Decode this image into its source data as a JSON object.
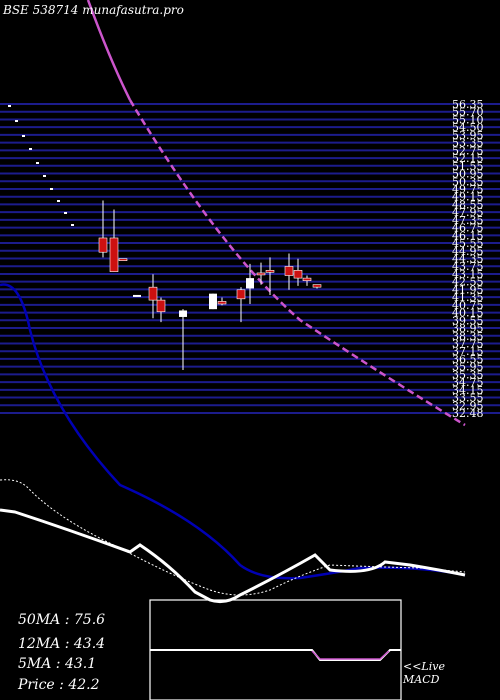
{
  "header": {
    "title": "BSE 538714 munafasutra.pro"
  },
  "stats": {
    "ma50": "50MA : 75.6",
    "ma12": "12MA : 43.4",
    "ma5": "5MA : 43.1",
    "price": "Price   : 42.2"
  },
  "macd": {
    "line1": "<<Live",
    "line2": "MACD"
  },
  "colors": {
    "grid": "#1c1c8c",
    "bull": "#ffffff",
    "bear": "#cc1010",
    "trend": "#cc55cc",
    "ma_blue": "#0000b4",
    "ma_white": "#ffffff",
    "macd_box": "#ffffff"
  },
  "chart_data": {
    "type": "candlestick",
    "title": "BSE 538714 munafasutra.pro",
    "ylim": [
      32.48,
      56.35
    ],
    "y_tick_labels": [
      "56.35",
      "55.70",
      "55.10",
      "54.50",
      "53.95",
      "53.35",
      "52.75",
      "52.15",
      "51.55",
      "50.95",
      "50.35",
      "49.75",
      "49.15",
      "48.55",
      "47.95",
      "47.35",
      "46.75",
      "46.15",
      "45.55",
      "44.95",
      "44.35",
      "43.75",
      "43.15",
      "42.55",
      "41.95",
      "41.35",
      "40.75",
      "40.15",
      "39.55",
      "38.95",
      "38.35",
      "37.75",
      "37.15",
      "36.55",
      "35.95",
      "35.35",
      "34.75",
      "34.15",
      "33.55",
      "32.95",
      "32.48"
    ],
    "candles": [
      {
        "o": 46.0,
        "h": 48.9,
        "l": 44.5,
        "c": 44.9
      },
      {
        "o": 46.0,
        "h": 48.2,
        "l": 43.4,
        "c": 43.4
      },
      {
        "o": 44.4,
        "h": 44.4,
        "l": 44.3,
        "c": 44.3
      },
      {
        "o": 41.5,
        "h": 41.6,
        "l": 41.5,
        "c": 41.6
      },
      {
        "o": 42.2,
        "h": 43.2,
        "l": 39.8,
        "c": 41.2
      },
      {
        "o": 41.2,
        "h": 41.4,
        "l": 39.5,
        "c": 40.3
      },
      {
        "o": 39.9,
        "h": 40.5,
        "l": 35.8,
        "c": 40.4
      },
      {
        "o": 40.5,
        "h": 41.7,
        "l": 40.5,
        "c": 41.7
      },
      {
        "o": 41.1,
        "h": 41.4,
        "l": 40.8,
        "c": 40.9
      },
      {
        "o": 42.0,
        "h": 42.2,
        "l": 39.5,
        "c": 41.3
      },
      {
        "o": 42.1,
        "h": 44.0,
        "l": 40.9,
        "c": 42.9
      },
      {
        "o": 43.3,
        "h": 44.1,
        "l": 42.4,
        "c": 43.2
      },
      {
        "o": 43.5,
        "h": 44.5,
        "l": 41.6,
        "c": 43.4
      },
      {
        "o": 43.8,
        "h": 44.8,
        "l": 42.0,
        "c": 43.1
      },
      {
        "o": 43.5,
        "h": 44.4,
        "l": 42.3,
        "c": 42.9
      },
      {
        "o": 42.9,
        "h": 43.1,
        "l": 42.3,
        "c": 42.7
      },
      {
        "o": 42.4,
        "h": 42.4,
        "l": 42.1,
        "c": 42.2
      }
    ],
    "moving_averages": [
      {
        "name": "50MA",
        "value": 75.6
      },
      {
        "name": "12MA",
        "value": 43.4
      },
      {
        "name": "5MA",
        "value": 43.1
      }
    ],
    "price": 42.2
  }
}
